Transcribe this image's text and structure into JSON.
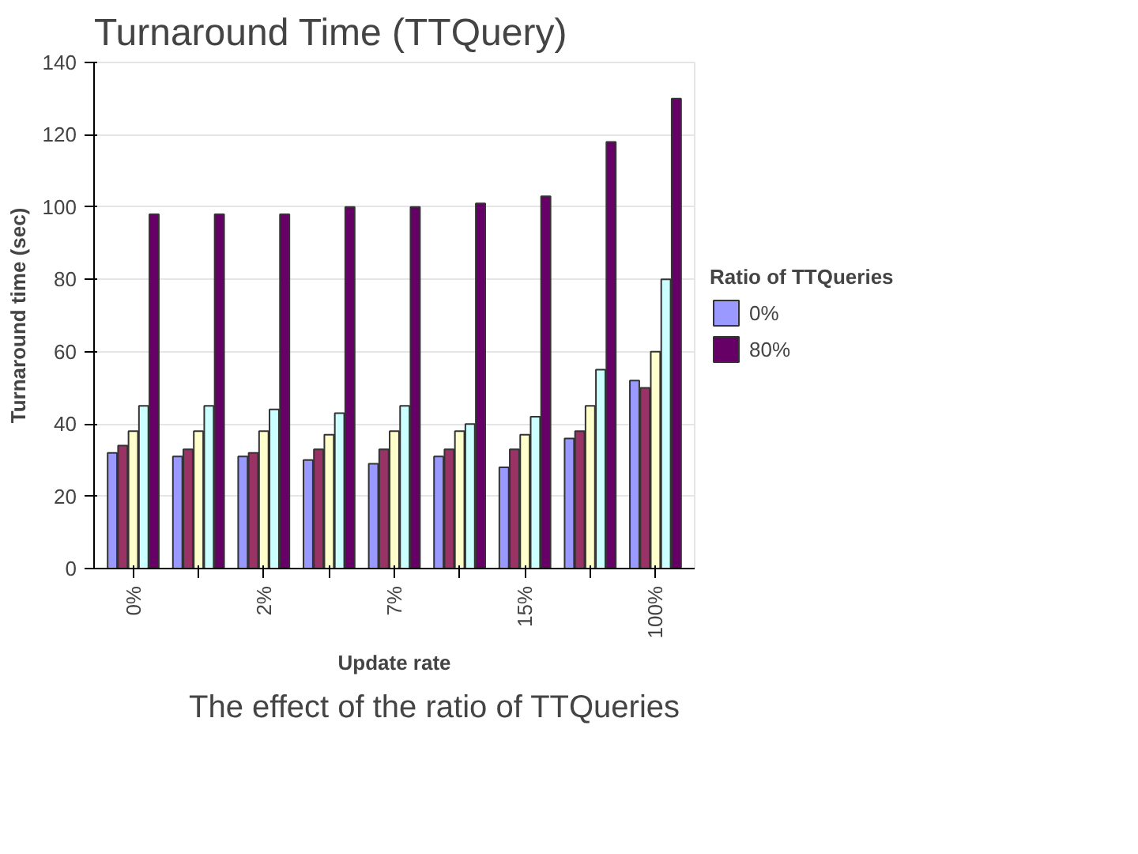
{
  "chart_data": {
    "type": "bar",
    "title": "Turnaround Time (TTQuery)",
    "xlabel": "Update rate",
    "ylabel": "Turnaround time (sec)",
    "legend_title": "Ratio of TTQueries",
    "annotations": [
      "The effect of the ratio of TTQueries"
    ],
    "categories": [
      "0%",
      null,
      "2%",
      null,
      "7%",
      null,
      "15%",
      null,
      "100%"
    ],
    "series": [
      {
        "name": "0%",
        "color": "#9999ff",
        "values": [
          32,
          31,
          31,
          30,
          29,
          31,
          28,
          36,
          52
        ]
      },
      {
        "name": null,
        "color": "#993366",
        "values": [
          34,
          33,
          32,
          33,
          33,
          33,
          33,
          38,
          50
        ]
      },
      {
        "name": null,
        "color": "#ffffcc",
        "values": [
          38,
          38,
          38,
          37,
          38,
          38,
          37,
          45,
          60
        ]
      },
      {
        "name": null,
        "color": "#ccffff",
        "values": [
          45,
          45,
          44,
          43,
          45,
          40,
          42,
          55,
          80
        ]
      },
      {
        "name": "80%",
        "color": "#660066",
        "values": [
          98,
          98,
          98,
          100,
          100,
          101,
          103,
          118,
          130
        ]
      }
    ],
    "ylim": [
      0,
      140
    ],
    "yticks": [
      0,
      20,
      40,
      60,
      80,
      100,
      120,
      140
    ],
    "grid": "y",
    "legend": "right"
  }
}
